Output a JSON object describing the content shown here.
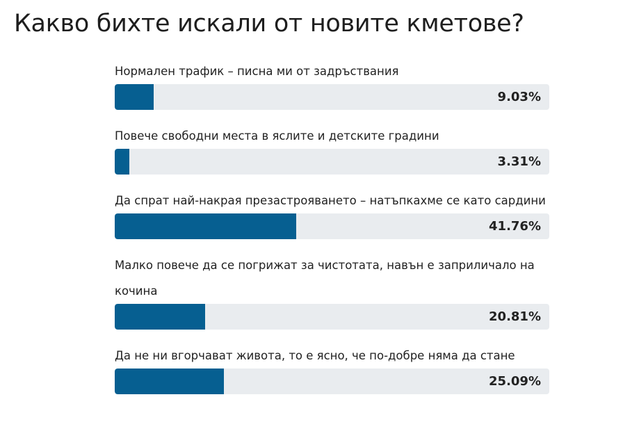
{
  "chart_data": {
    "type": "bar",
    "orientation": "horizontal",
    "title": "Какво бихте искали от новите кметове?",
    "categories": [
      "Нормален трафик – писна ми от задръствания",
      "Повече свободни места в яслите и детските градини",
      "Да спрат най-накрая презастрояването – натъпкахме се като сардини",
      "Малко повече да се погрижат за чистотата, навън е заприличало на кочина",
      "Да не ни вгорчават живота, то е ясно, че по-добре няма да стане"
    ],
    "values": [
      9.03,
      3.31,
      41.76,
      20.81,
      25.09
    ],
    "value_labels": [
      "9.03%",
      "3.31%",
      "41.76%",
      "20.81%",
      "25.09%"
    ],
    "xlim": [
      0,
      100
    ],
    "color": "#065f91",
    "track_color": "#e9ecef"
  }
}
